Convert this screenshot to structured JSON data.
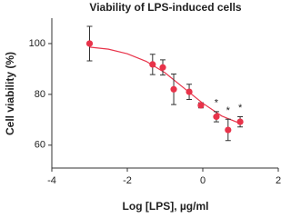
{
  "chart_data": {
    "type": "scatter",
    "title": "Viability of LPS-induced cells",
    "x_label": "Log [LPS], µg/ml",
    "y_label": "Cell viability (%)",
    "points": {
      "color": "#e8334a",
      "x": [
        -3,
        -1.33,
        -1.06,
        -0.77,
        -0.36,
        -0.05,
        0.36,
        0.67,
        0.99
      ],
      "values": [
        100,
        91.8,
        90.6,
        82,
        81,
        75.7,
        71.2,
        66,
        69.2
      ],
      "errors": [
        6.8,
        4,
        3,
        6,
        3,
        1,
        2,
        4.2,
        2
      ]
    },
    "fit": {
      "color": "#e8334a",
      "x": [
        -3,
        -2.5,
        -2,
        -1.5,
        -1,
        -0.5,
        0,
        0.5,
        1
      ],
      "values": [
        98.6,
        97.8,
        96,
        93,
        88.5,
        82.5,
        76.5,
        71.5,
        68.5
      ]
    },
    "annotations": [
      {
        "text": "*",
        "x": 0.36,
        "y": 76.5
      },
      {
        "text": "*",
        "x": 0.67,
        "y": 73.5
      },
      {
        "text": "*",
        "x": 0.99,
        "y": 74.5
      }
    ],
    "xlim": [
      -4,
      2
    ],
    "xticks": [
      -4,
      -2,
      0,
      2
    ],
    "ylim": [
      51,
      110
    ],
    "yticks": [
      60,
      80,
      100
    ]
  }
}
